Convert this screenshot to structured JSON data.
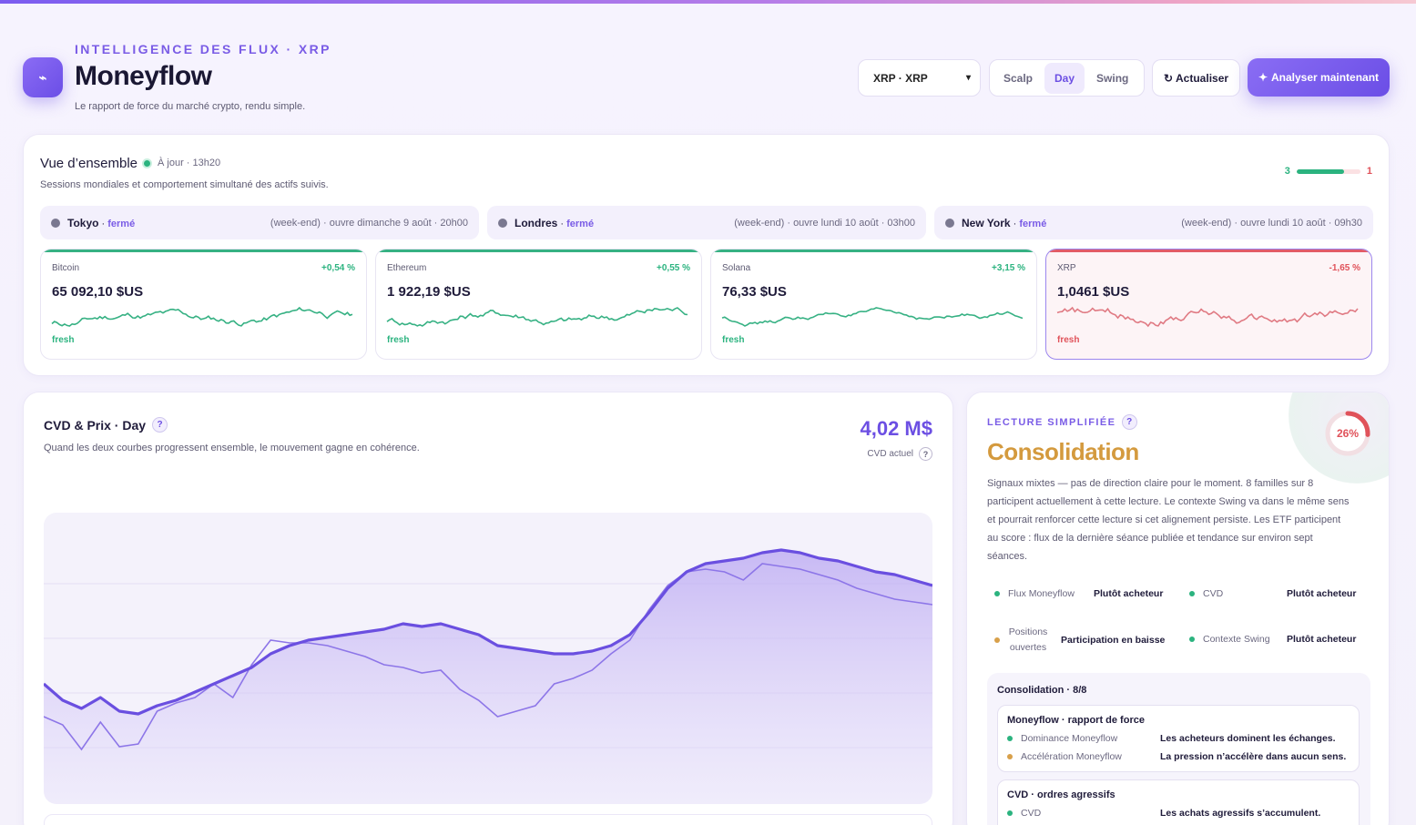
{
  "header": {
    "eyebrow": "INTELLIGENCE DES FLUX · XRP",
    "title": "Moneyflow",
    "subtitle": "Le rapport de force du marché crypto, rendu simple.",
    "logo_icon": "wave-icon",
    "asset_select": "XRP · XRP",
    "modes": [
      "Scalp",
      "Day",
      "Swing"
    ],
    "active_mode": "Day",
    "refresh_label": "Actualiser",
    "analyze_label": "Analyser maintenant"
  },
  "overview": {
    "title": "Vue d’ensemble",
    "status": "À jour · 13h20",
    "subtitle": "Sessions mondiales et comportement simultané des actifs suivis.",
    "ratio_up": "3",
    "ratio_down": "1",
    "ratio_fraction": 0.75,
    "sessions": [
      {
        "city": "Tokyo",
        "state": "fermé",
        "note": "(week-end) · ouvre dimanche 9 août · 20h00"
      },
      {
        "city": "Londres",
        "state": "fermé",
        "note": "(week-end) · ouvre lundi 10 août · 03h00"
      },
      {
        "city": "New York",
        "state": "fermé",
        "note": "(week-end) · ouvre lundi 10 août · 09h30"
      }
    ],
    "assets": [
      {
        "name": "Bitcoin",
        "change": "+0,54 %",
        "price": "65 092,10 $US",
        "status": "fresh",
        "trend": "up"
      },
      {
        "name": "Ethereum",
        "change": "+0,55 %",
        "price": "1 922,19 $US",
        "status": "fresh",
        "trend": "up"
      },
      {
        "name": "Solana",
        "change": "+3,15 %",
        "price": "76,33 $US",
        "status": "fresh",
        "trend": "up"
      },
      {
        "name": "XRP",
        "change": "-1,65 %",
        "price": "1,0461 $US",
        "status": "fresh",
        "trend": "down"
      }
    ]
  },
  "cvd": {
    "title": "CVD & Prix · Day",
    "subtitle": "Quand les deux courbes progressent ensemble, le mouvement gagne en cohérence.",
    "value": "4,02 M$",
    "value_caption": "CVD actuel"
  },
  "chart_data": {
    "type": "line",
    "series": [
      {
        "values": [
          32,
          29,
          20,
          30,
          21,
          22,
          34,
          37,
          39,
          44,
          39,
          51,
          60,
          59,
          59,
          58,
          56,
          54,
          51,
          50,
          48,
          49,
          42,
          38,
          32,
          34,
          36,
          44,
          46,
          49,
          55,
          60,
          71,
          80,
          85,
          86,
          85,
          82,
          88,
          87,
          86,
          84,
          82,
          79,
          77,
          75,
          74,
          73
        ]
      },
      {
        "values": [
          44,
          38,
          35,
          39,
          34,
          33,
          36,
          38,
          41,
          44,
          47,
          50,
          55,
          58,
          60,
          61,
          62,
          63,
          64,
          66,
          65,
          66,
          64,
          62,
          58,
          57,
          56,
          55,
          55,
          56,
          58,
          62,
          70,
          79,
          85,
          88,
          89,
          90,
          92,
          93,
          92,
          90,
          89,
          87,
          85,
          84,
          82,
          80
        ]
      }
    ]
  },
  "reading": {
    "eyebrow": "LECTURE SIMPLIFIÉE",
    "title": "Consolidation",
    "gauge_value": "26%",
    "gauge_fraction": 0.26,
    "text": "Signaux mixtes — pas de direction claire pour le moment. 8 familles sur 8 participent actuellement à cette lecture. Le contexte Swing va dans le même sens et pourrait renforcer cette lecture si cet alignement persiste. Les ETF participent au score : flux de la dernière séance publiée et tendance sur environ sept séances.",
    "signals": [
      {
        "label": "Flux Moneyflow",
        "value": "Plutôt acheteur",
        "color": "#2bb37f"
      },
      {
        "label": "CVD",
        "value": "Plutôt acheteur",
        "color": "#2bb37f"
      },
      {
        "label": "Positions ouvertes",
        "value": "Participation en baisse",
        "color": "#d8a04a"
      },
      {
        "label": "Contexte Swing",
        "value": "Plutôt acheteur",
        "color": "#2bb37f"
      }
    ],
    "panel_title": "Consolidation · 8/8",
    "boxes": [
      {
        "title": "Moneyflow · rapport de force",
        "rows": [
          {
            "label": "Dominance Moneyflow",
            "value": "Les acheteurs dominent les échanges.",
            "color": "#2bb37f"
          },
          {
            "label": "Accélération Moneyflow",
            "value": "La pression n’accélère dans aucun sens.",
            "color": "#d8a04a"
          }
        ]
      },
      {
        "title": "CVD · ordres agressifs",
        "rows": [
          {
            "label": "CVD",
            "value": "Les achats agressifs s’accumulent.",
            "color": "#2bb37f"
          }
        ]
      }
    ]
  }
}
